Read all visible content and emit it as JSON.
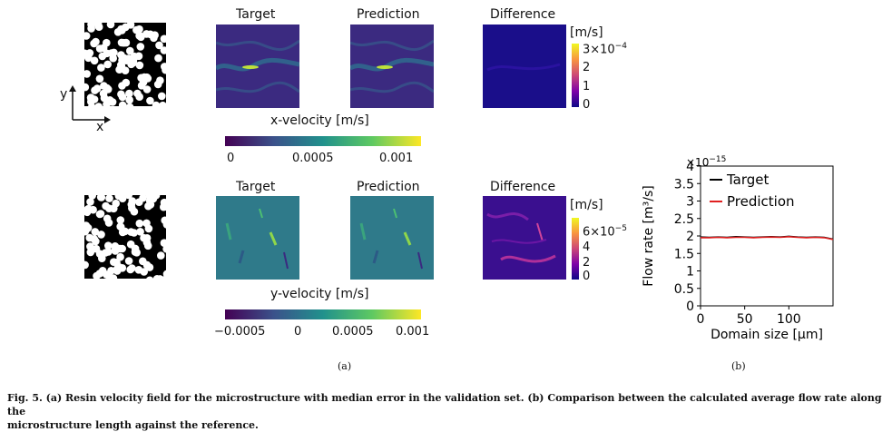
{
  "panel_a": {
    "sublabel": "(a)",
    "axes": {
      "y": "y",
      "x": "x"
    },
    "rows": [
      {
        "titles": {
          "target": "Target",
          "prediction": "Prediction",
          "difference": "Difference"
        },
        "diff_unit": "[m/s]",
        "diff_ticks": [
          "3×10",
          "2",
          "1",
          "0"
        ],
        "diff_tick_exp": "−4",
        "colorbar_label": "x-velocity [m/s]",
        "colorbar_ticks": [
          "0",
          "0.0005",
          "0.001"
        ]
      },
      {
        "titles": {
          "target": "Target",
          "prediction": "Prediction",
          "difference": "Difference"
        },
        "diff_unit": "[m/s]",
        "diff_ticks": [
          "6×10",
          "4",
          "2",
          "0"
        ],
        "diff_tick_exp": "−5",
        "colorbar_label": "y-velocity [m/s]",
        "colorbar_ticks": [
          "−0.0005",
          "0",
          "0.0005",
          "0.001"
        ]
      }
    ]
  },
  "panel_b": {
    "sublabel": "(b)"
  },
  "chart_data": {
    "type": "line",
    "xlabel": "Domain size [μm]",
    "ylabel": "Flow rate [m³/s]",
    "xlim": [
      0,
      150
    ],
    "ylim": [
      0,
      4
    ],
    "y_offset": "×10",
    "y_offset_exp": "−15",
    "x_ticks": [
      "0",
      "50",
      "100"
    ],
    "y_ticks": [
      "0",
      "0.5",
      "1",
      "1.5",
      "2",
      "2.5",
      "3",
      "3.5",
      "4"
    ],
    "legend_placement": "top-right",
    "series": [
      {
        "name": "Target",
        "color": "#000000",
        "x": [
          0,
          10,
          20,
          30,
          40,
          50,
          60,
          70,
          80,
          90,
          100,
          110,
          120,
          130,
          140,
          150
        ],
        "y": [
          1.97,
          1.96,
          1.97,
          1.96,
          1.98,
          1.97,
          1.96,
          1.97,
          1.98,
          1.97,
          1.99,
          1.97,
          1.96,
          1.97,
          1.96,
          1.91
        ]
      },
      {
        "name": "Prediction",
        "color": "#e02020",
        "x": [
          0,
          10,
          20,
          30,
          40,
          50,
          60,
          70,
          80,
          90,
          100,
          110,
          120,
          130,
          140,
          150
        ],
        "y": [
          1.95,
          1.95,
          1.96,
          1.95,
          1.96,
          1.96,
          1.95,
          1.96,
          1.97,
          1.96,
          1.98,
          1.96,
          1.95,
          1.96,
          1.95,
          1.9
        ]
      }
    ]
  },
  "caption": {
    "line1": "Fig. 5. (a) Resin velocity field for the microstructure with median error in the validation set. (b) Comparison between the calculated average flow rate along the",
    "line2": "microstructure length against the reference."
  }
}
